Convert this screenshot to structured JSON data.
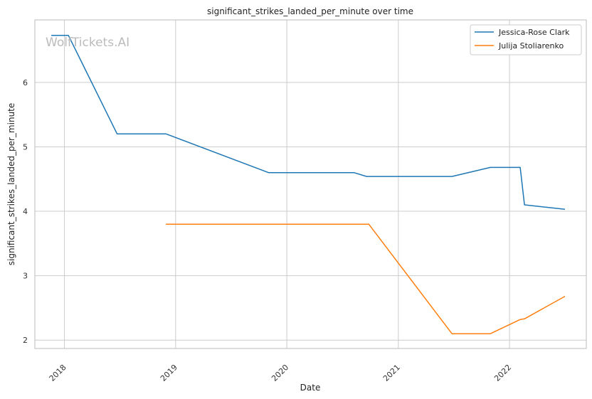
{
  "chart_data": {
    "type": "line",
    "title": "significant_strikes_landed_per_minute over time",
    "xlabel": "Date",
    "ylabel": "significant_strikes_landed_per_minute",
    "watermark": "WolfTickets.AI",
    "x_ticks": [
      "2018",
      "2019",
      "2020",
      "2021",
      "2022"
    ],
    "y_ticks": [
      "2",
      "3",
      "4",
      "5",
      "6"
    ],
    "xlim": [
      "2017-09-26",
      "2022-09-10"
    ],
    "ylim": [
      1.87,
      6.97
    ],
    "grid": true,
    "legend_position": "top-right",
    "colors": {
      "Jessica-Rose Clark": "#1f77b4",
      "Julija Stoliarenko": "#ff7f0e",
      "grid": "#cccccc",
      "axes": "#bbbbbb"
    },
    "series": [
      {
        "name": "Jessica-Rose Clark",
        "color": "#1f77b4",
        "points": [
          {
            "x": "2017-11-19",
            "y": 6.73
          },
          {
            "x": "2018-01-14",
            "y": 6.73
          },
          {
            "x": "2018-06-23",
            "y": 5.2
          },
          {
            "x": "2018-12-01",
            "y": 5.2
          },
          {
            "x": "2019-11-02",
            "y": 4.6
          },
          {
            "x": "2020-08-08",
            "y": 4.6
          },
          {
            "x": "2020-09-19",
            "y": 4.54
          },
          {
            "x": "2021-06-26",
            "y": 4.54
          },
          {
            "x": "2021-10-30",
            "y": 4.68
          },
          {
            "x": "2022-02-05",
            "y": 4.68
          },
          {
            "x": "2022-02-19",
            "y": 4.1
          },
          {
            "x": "2022-07-02",
            "y": 4.03
          }
        ]
      },
      {
        "name": "Julija Stoliarenko",
        "color": "#ff7f0e",
        "points": [
          {
            "x": "2018-11-30",
            "y": 3.8
          },
          {
            "x": "2020-09-26",
            "y": 3.8
          },
          {
            "x": "2021-06-26",
            "y": 2.1
          },
          {
            "x": "2021-10-30",
            "y": 2.1
          },
          {
            "x": "2022-02-05",
            "y": 2.32
          },
          {
            "x": "2022-02-19",
            "y": 2.33
          },
          {
            "x": "2022-07-02",
            "y": 2.68
          }
        ]
      }
    ]
  }
}
